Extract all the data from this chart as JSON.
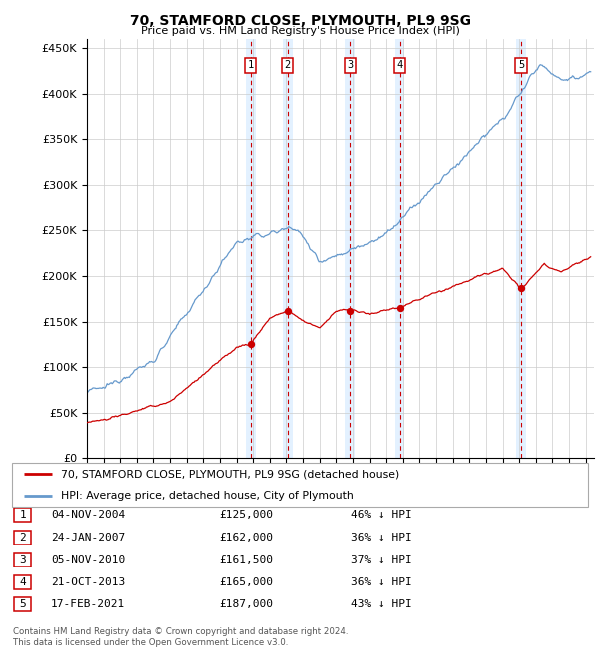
{
  "title1": "70, STAMFORD CLOSE, PLYMOUTH, PL9 9SG",
  "title2": "Price paid vs. HM Land Registry's House Price Index (HPI)",
  "ylim": [
    0,
    460000
  ],
  "yticks": [
    0,
    50000,
    100000,
    150000,
    200000,
    250000,
    300000,
    350000,
    400000,
    450000
  ],
  "ytick_labels": [
    "£0",
    "£50K",
    "£100K",
    "£150K",
    "£200K",
    "£250K",
    "£300K",
    "£350K",
    "£400K",
    "£450K"
  ],
  "sales": [
    {
      "date_num": 2004.84,
      "price": 125000,
      "label": "1"
    },
    {
      "date_num": 2007.07,
      "price": 162000,
      "label": "2"
    },
    {
      "date_num": 2010.84,
      "price": 161500,
      "label": "3"
    },
    {
      "date_num": 2013.8,
      "price": 165000,
      "label": "4"
    },
    {
      "date_num": 2021.12,
      "price": 187000,
      "label": "5"
    }
  ],
  "sale_dline_color": "#cc0000",
  "sale_shade_color": "#ddeeff",
  "hpi_color": "#6699cc",
  "sale_color": "#cc0000",
  "legend_entries": [
    "70, STAMFORD CLOSE, PLYMOUTH, PL9 9SG (detached house)",
    "HPI: Average price, detached house, City of Plymouth"
  ],
  "table_rows": [
    [
      "1",
      "04-NOV-2004",
      "£125,000",
      "46% ↓ HPI"
    ],
    [
      "2",
      "24-JAN-2007",
      "£162,000",
      "36% ↓ HPI"
    ],
    [
      "3",
      "05-NOV-2010",
      "£161,500",
      "37% ↓ HPI"
    ],
    [
      "4",
      "21-OCT-2013",
      "£165,000",
      "36% ↓ HPI"
    ],
    [
      "5",
      "17-FEB-2021",
      "£187,000",
      "43% ↓ HPI"
    ]
  ],
  "footer": "Contains HM Land Registry data © Crown copyright and database right 2024.\nThis data is licensed under the Open Government Licence v3.0.",
  "xmin": 1995,
  "xmax": 2025.5
}
